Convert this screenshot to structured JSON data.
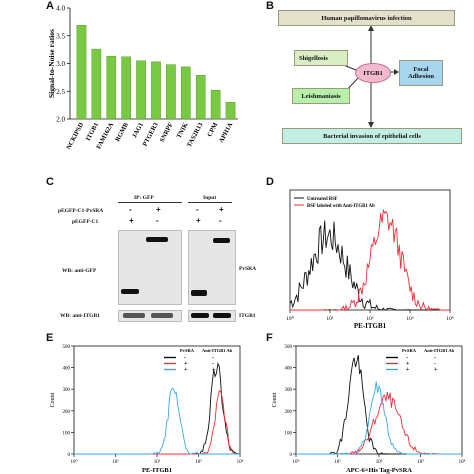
{
  "panels": {
    "A": {
      "label": "A",
      "chart_data": {
        "type": "bar",
        "ylabel": "Signal-to-Noise ratios",
        "ylim": [
          2.0,
          4.0
        ],
        "yticks": [
          "2.0",
          "2.5",
          "3.0",
          "3.5",
          "4.0"
        ],
        "categories": [
          "NCKIPSD",
          "ITGB1",
          "FAM162A",
          "RGMB",
          "JAG1",
          "PTGER3",
          "SNRPF",
          "TNIK",
          "TAS2R13",
          "CPM",
          "APH1A"
        ],
        "values": [
          3.69,
          3.26,
          3.13,
          3.12,
          3.05,
          3.03,
          2.98,
          2.94,
          2.79,
          2.52,
          2.3
        ],
        "bar_color": "#7ac943"
      }
    },
    "B": {
      "label": "B",
      "center": "ITGB1",
      "nodes": {
        "top": "Human papillomavirus infection",
        "left": "Shigellosis",
        "right": "Focal Adhesion",
        "bottom_left": "Leishmaniasis",
        "bottom": "Bacterial invasion of epithelial cells"
      }
    },
    "C": {
      "label": "C",
      "ip_header": "IP: GFP",
      "input_header": "Input",
      "row1_label": "pEGFP-C1-PvSRA",
      "row2_label": "pEGFP-C1",
      "row1_signs": [
        "-",
        "+",
        "-",
        "+"
      ],
      "row2_signs": [
        "+",
        "-",
        "+",
        "-"
      ],
      "wb_gfp": "WB: anti-GFP",
      "wb_itgb1": "WB: anti-ITGB1",
      "right_label_top": "PvSRA",
      "right_label_bottom": "ITGB1"
    },
    "D": {
      "label": "D",
      "legend": [
        "Untreated BSF",
        "BSF labeled with Anti-ITGB1 Ab"
      ],
      "series_colors": [
        "#111111",
        "#e8303a"
      ],
      "xlabel": "PE-ITGB1",
      "xticks": [
        "10⁰",
        "10¹",
        "10²",
        "10³",
        "10⁴"
      ]
    },
    "E": {
      "label": "E",
      "xlabel": "PE-ITGB1",
      "ylabel": "Count",
      "col_headers": [
        "PvSRA",
        "Anti-ITGB1 Ab"
      ],
      "rows": [
        [
          "-",
          "-"
        ],
        [
          "+",
          "-"
        ],
        [
          "+",
          "+"
        ]
      ],
      "series_colors": [
        "#111111",
        "#e8303a",
        "#3aa9e0"
      ],
      "xticks": [
        "10⁰",
        "10¹",
        "10²",
        "10³",
        "10⁴"
      ],
      "yticks": [
        "0",
        "100",
        "200",
        "300",
        "400",
        "500"
      ]
    },
    "F": {
      "label": "F",
      "xlabel": "APC-6×His Tag-PvSRA",
      "ylabel": "Count",
      "col_headers": [
        "PvSRA",
        "Anti-ITGB1 Ab"
      ],
      "rows": [
        [
          "-",
          "-"
        ],
        [
          "+",
          "-"
        ],
        [
          "+",
          "+"
        ]
      ],
      "series_colors": [
        "#111111",
        "#e8303a",
        "#3aa9e0"
      ],
      "xticks": [
        "10⁰",
        "10¹",
        "10²",
        "10³",
        "10⁴"
      ],
      "yticks": [
        "0",
        "100",
        "200",
        "300",
        "400",
        "500"
      ]
    }
  }
}
